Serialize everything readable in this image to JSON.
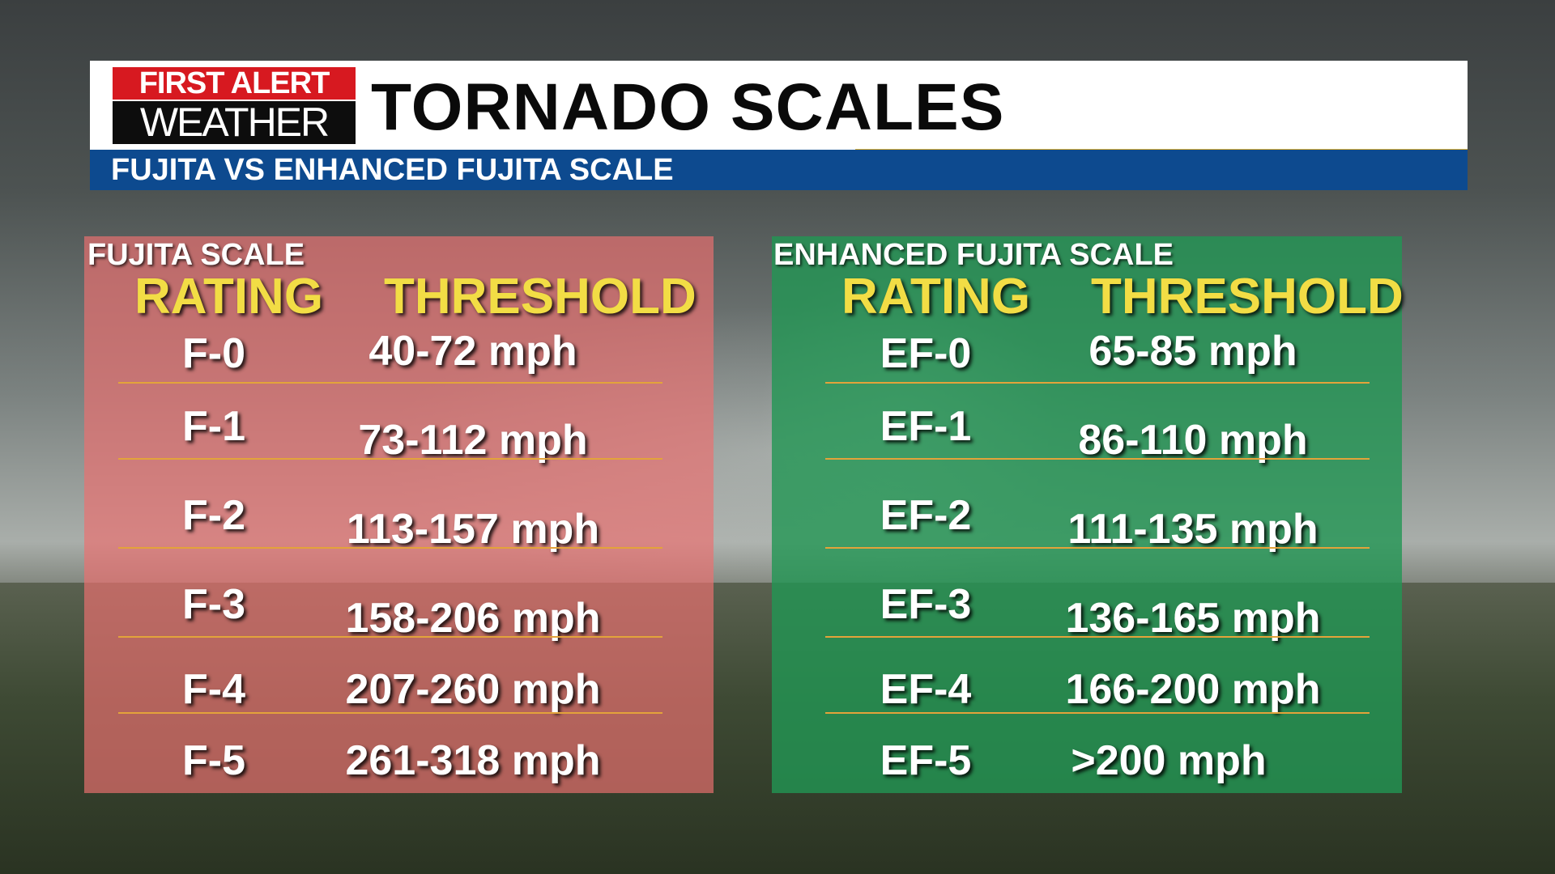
{
  "header": {
    "logo_top": "FIRST ALERT",
    "logo_bottom": "WEATHER",
    "title": "TORNADO SCALES",
    "subtitle": "FUJITA VS ENHANCED FUJITA SCALE"
  },
  "fujita": {
    "name": "FUJITA SCALE",
    "col_rating": "RATING",
    "col_threshold": "THRESHOLD",
    "rows": [
      {
        "rating": "F-0",
        "threshold": "40-72 mph"
      },
      {
        "rating": "F-1",
        "threshold": "73-112  mph"
      },
      {
        "rating": "F-2",
        "threshold": "113-157 mph"
      },
      {
        "rating": "F-3",
        "threshold": "158-206 mph"
      },
      {
        "rating": "F-4",
        "threshold": "207-260 mph"
      },
      {
        "rating": "F-5",
        "threshold": "261-318 mph"
      }
    ]
  },
  "enhanced": {
    "name": "ENHANCED FUJITA SCALE",
    "col_rating": "RATING",
    "col_threshold": "THRESHOLD",
    "rows": [
      {
        "rating": "EF-0",
        "threshold": "65-85 mph"
      },
      {
        "rating": "EF-1",
        "threshold": "86-110 mph"
      },
      {
        "rating": "EF-2",
        "threshold": "111-135 mph"
      },
      {
        "rating": "EF-3",
        "threshold": "136-165 mph"
      },
      {
        "rating": "EF-4",
        "threshold": "166-200 mph"
      },
      {
        "rating": "EF-5",
        "threshold": ">200 mph"
      }
    ]
  },
  "colors": {
    "fujita_panel": "#ec7070",
    "enhanced_panel": "#229654",
    "heading_yellow": "#f2dd45",
    "subheader_blue": "#0d4a8f",
    "logo_red": "#d71920",
    "rule_orange": "#e3a33a"
  }
}
